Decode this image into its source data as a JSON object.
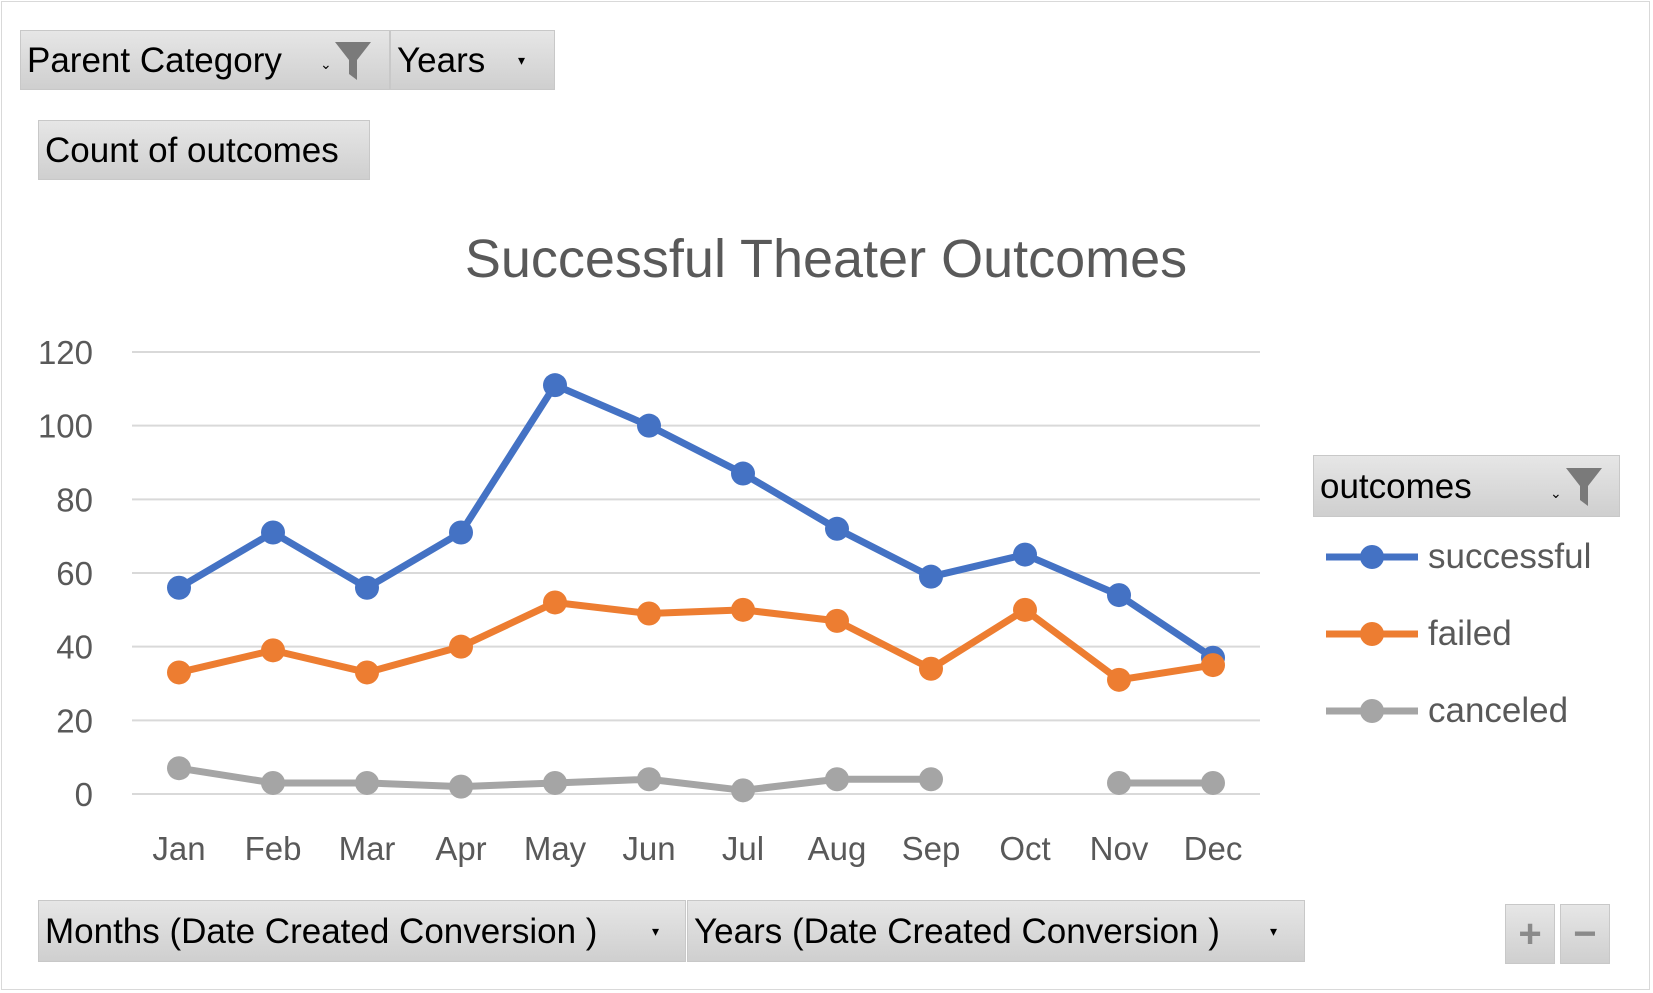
{
  "filters": {
    "parent_category": "Parent Category",
    "years": "Years",
    "value_field": "Count of outcomes",
    "legend_field": "outcomes",
    "axis_field_months": "Months (Date Created Conversion )",
    "axis_field_years": "Years (Date Created Conversion )"
  },
  "controls": {
    "expand": "+",
    "collapse": "−"
  },
  "chart_data": {
    "type": "line",
    "title": "Successful Theater Outcomes",
    "categories": [
      "Jan",
      "Feb",
      "Mar",
      "Apr",
      "May",
      "Jun",
      "Jul",
      "Aug",
      "Sep",
      "Oct",
      "Nov",
      "Dec"
    ],
    "yticks": [
      "0",
      "20",
      "40",
      "60",
      "80",
      "100",
      "120"
    ],
    "ylim": [
      0,
      120
    ],
    "grid": true,
    "legend_position": "right",
    "series": [
      {
        "name": "successful",
        "color": "#4472C4",
        "values": [
          56,
          71,
          56,
          71,
          111,
          100,
          87,
          72,
          59,
          65,
          54,
          37
        ]
      },
      {
        "name": "failed",
        "color": "#ED7D31",
        "values": [
          33,
          39,
          33,
          40,
          52,
          49,
          50,
          47,
          34,
          50,
          31,
          35
        ]
      },
      {
        "name": "canceled",
        "color": "#A5A5A5",
        "values": [
          7,
          3,
          3,
          2,
          3,
          4,
          1,
          4,
          4,
          null,
          3,
          3
        ]
      }
    ]
  }
}
